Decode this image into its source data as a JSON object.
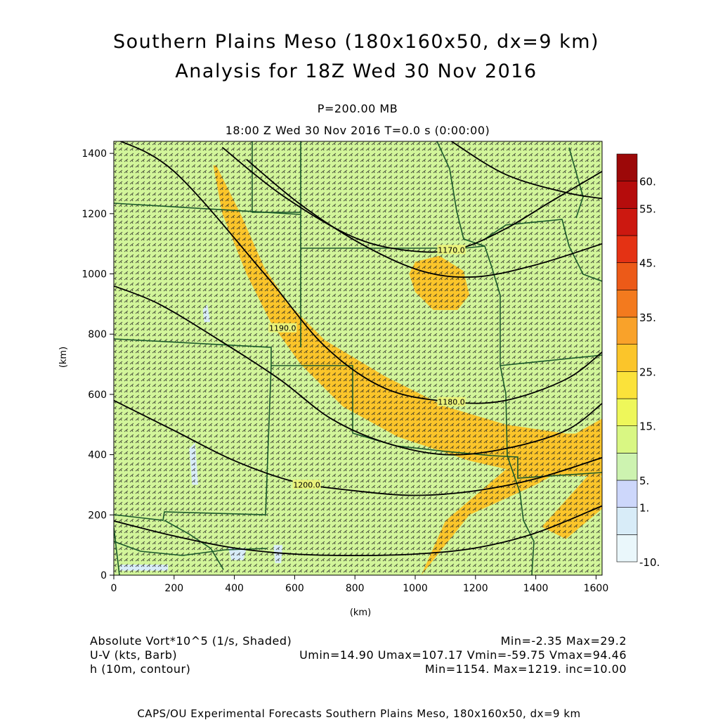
{
  "header": {
    "title_line1": "Southern Plains Meso (180x160x50, dx=9 km)",
    "title_line2": "Analysis for 18Z Wed 30 Nov 2016",
    "level": "P=200.00 MB",
    "valid_time": "18:00 Z Wed 30 Nov 2016    T=0.0 s (0:00:00)"
  },
  "footer": {
    "field1": "Absolute Vort*10^5 (1/s, Shaded)",
    "field1_stats": "Min=-2.35 Max=29.2",
    "field2": "U-V (kts, Barb)",
    "field2_stats": "Umin=14.90 Umax=107.17 Vmin=-59.75 Vmax=94.46",
    "field3": "h (10m, contour)",
    "field3_stats": "Min=1154. Max=1219. inc=10.00",
    "credit": "CAPS/OU Experimental Forecasts  Southern Plains Meso, 180x160x50, dx=9 km"
  },
  "colors": {
    "base_field": "#d2f59a",
    "barb": "#222222",
    "contour": "#000000",
    "state_border": "#1b5a2a"
  },
  "chart_data": {
    "type": "heatmap",
    "xlabel": "(km)",
    "ylabel": "(km)",
    "xlim": [
      0,
      1620
    ],
    "ylim": [
      0,
      1440
    ],
    "x_ticks": [
      0,
      200,
      400,
      600,
      800,
      1000,
      1200,
      1400,
      1600
    ],
    "y_ticks": [
      0,
      200,
      400,
      600,
      800,
      1000,
      1200,
      1400
    ],
    "colorbar": {
      "levels": [
        {
          "value": -10,
          "color": "#eaf7fb"
        },
        {
          "value": 0,
          "color": "#d8ecf8"
        },
        {
          "value": 1,
          "color": "#cdd7fb"
        },
        {
          "value": 5,
          "color": "#cdf3b0"
        },
        {
          "value": 10,
          "color": "#d9f783"
        },
        {
          "value": 15,
          "color": "#eef75a"
        },
        {
          "value": 20,
          "color": "#fbe23a"
        },
        {
          "value": 25,
          "color": "#fbc52a"
        },
        {
          "value": 30,
          "color": "#f9a22a"
        },
        {
          "value": 35,
          "color": "#f37a1e"
        },
        {
          "value": 40,
          "color": "#ec5a18"
        },
        {
          "value": 45,
          "color": "#e43214"
        },
        {
          "value": 50,
          "color": "#cc1810"
        },
        {
          "value": 55,
          "color": "#b50c0c"
        },
        {
          "value": 60,
          "color": "#9c0808"
        }
      ],
      "tick_labels": [
        "-10.",
        "1.",
        "5.",
        "15.",
        "25.",
        "35.",
        "45.",
        "55.",
        "60."
      ],
      "tick_values": [
        -10,
        1,
        5,
        15,
        25,
        35,
        45,
        55,
        60
      ]
    },
    "shaded_regions": [
      {
        "value": 28,
        "points": [
          [
            1020,
            0
          ],
          [
            1180,
            200
          ],
          [
            1400,
            300
          ],
          [
            1580,
            400
          ],
          [
            1620,
            420
          ],
          [
            1620,
            520
          ],
          [
            1480,
            440
          ],
          [
            1300,
            350
          ],
          [
            1100,
            180
          ]
        ]
      },
      {
        "value": 28,
        "points": [
          [
            1420,
            160
          ],
          [
            1600,
            360
          ],
          [
            1620,
            320
          ],
          [
            1620,
            220
          ],
          [
            1500,
            120
          ]
        ]
      },
      {
        "value": 27,
        "points": [
          [
            340,
            1360
          ],
          [
            420,
            1200
          ],
          [
            500,
            1020
          ],
          [
            580,
            900
          ],
          [
            700,
            780
          ],
          [
            900,
            660
          ],
          [
            1100,
            560
          ],
          [
            1300,
            500
          ],
          [
            1500,
            470
          ],
          [
            1620,
            470
          ],
          [
            1620,
            330
          ],
          [
            1400,
            330
          ],
          [
            1180,
            380
          ],
          [
            940,
            460
          ],
          [
            760,
            560
          ],
          [
            620,
            700
          ],
          [
            520,
            840
          ],
          [
            440,
            1000
          ],
          [
            360,
            1200
          ],
          [
            330,
            1360
          ]
        ]
      },
      {
        "value": 27,
        "points": [
          [
            1000,
            1040
          ],
          [
            1080,
            1060
          ],
          [
            1160,
            1010
          ],
          [
            1180,
            930
          ],
          [
            1140,
            880
          ],
          [
            1060,
            880
          ],
          [
            1000,
            940
          ],
          [
            980,
            1000
          ]
        ]
      },
      {
        "value": 0,
        "points": [
          [
            260,
            300
          ],
          [
            280,
            300
          ],
          [
            270,
            440
          ],
          [
            250,
            420
          ]
        ]
      },
      {
        "value": 0,
        "points": [
          [
            300,
            840
          ],
          [
            320,
            840
          ],
          [
            310,
            900
          ],
          [
            295,
            880
          ]
        ]
      },
      {
        "value": 0,
        "points": [
          [
            20,
            35
          ],
          [
            180,
            35
          ],
          [
            180,
            15
          ],
          [
            20,
            15
          ]
        ]
      },
      {
        "value": 0,
        "points": [
          [
            380,
            90
          ],
          [
            440,
            90
          ],
          [
            430,
            50
          ],
          [
            390,
            50
          ]
        ]
      },
      {
        "value": 0,
        "points": [
          [
            530,
            100
          ],
          [
            560,
            100
          ],
          [
            555,
            40
          ],
          [
            535,
            40
          ]
        ]
      }
    ],
    "contours": [
      {
        "label": "1180.0",
        "label_at": [
          1120,
          575
        ],
        "points": [
          [
            0,
            1450
          ],
          [
            200,
            1340
          ],
          [
            500,
            1000
          ],
          [
            700,
            760
          ],
          [
            900,
            620
          ],
          [
            1120,
            575
          ],
          [
            1300,
            580
          ],
          [
            1500,
            650
          ],
          [
            1620,
            740
          ]
        ]
      },
      {
        "label": "1170.0",
        "label_at": [
          1120,
          1080
        ],
        "points": [
          [
            360,
            1420
          ],
          [
            560,
            1260
          ],
          [
            800,
            1120
          ],
          [
            1000,
            1075
          ],
          [
            1150,
            1085
          ],
          [
            1300,
            1150
          ],
          [
            1450,
            1240
          ],
          [
            1620,
            1340
          ]
        ]
      },
      {
        "label": "1190.0",
        "label_at": [
          560,
          820
        ],
        "points": [
          [
            0,
            960
          ],
          [
            150,
            900
          ],
          [
            350,
            780
          ],
          [
            550,
            650
          ],
          [
            720,
            520
          ],
          [
            900,
            440
          ],
          [
            1100,
            400
          ],
          [
            1300,
            420
          ],
          [
            1500,
            480
          ],
          [
            1620,
            570
          ]
        ]
      },
      {
        "label": "1200.0",
        "label_at": [
          640,
          300
        ],
        "points": [
          [
            0,
            580
          ],
          [
            200,
            480
          ],
          [
            400,
            380
          ],
          [
            600,
            310
          ],
          [
            800,
            280
          ],
          [
            1000,
            265
          ],
          [
            1200,
            280
          ],
          [
            1400,
            320
          ],
          [
            1620,
            390
          ]
        ]
      },
      {
        "label": "",
        "label_at": null,
        "points": [
          [
            0,
            180
          ],
          [
            200,
            130
          ],
          [
            400,
            90
          ],
          [
            600,
            70
          ],
          [
            800,
            65
          ],
          [
            1000,
            70
          ],
          [
            1200,
            90
          ],
          [
            1400,
            140
          ],
          [
            1620,
            230
          ]
        ]
      },
      {
        "label": "",
        "label_at": null,
        "points": [
          [
            440,
            1380
          ],
          [
            620,
            1230
          ],
          [
            820,
            1100
          ],
          [
            1020,
            1010
          ],
          [
            1200,
            990
          ],
          [
            1400,
            1030
          ],
          [
            1620,
            1100
          ]
        ]
      },
      {
        "label": "",
        "label_at": null,
        "points": [
          [
            1120,
            1440
          ],
          [
            1300,
            1330
          ],
          [
            1500,
            1270
          ],
          [
            1620,
            1250
          ]
        ]
      }
    ]
  }
}
